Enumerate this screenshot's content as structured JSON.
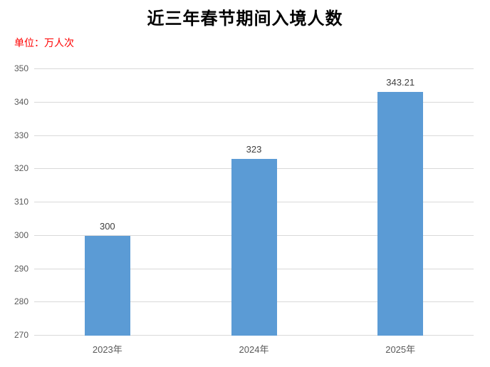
{
  "title": "近三年春节期间入境人数",
  "unit_label": "单位：万人次",
  "colors": {
    "bar": "#5b9bd5",
    "unit_label_text": "#ff0000",
    "title_text": "#000000",
    "axis_tick_text": "#595959",
    "data_label_text": "#404040",
    "gridline": "#d9d9d9",
    "background": "#ffffff"
  },
  "chart_data": {
    "type": "bar",
    "categories": [
      "2023年",
      "2024年",
      "2025年"
    ],
    "values": [
      300,
      323,
      343.21
    ],
    "data_labels": [
      "300",
      "323",
      "343.21"
    ],
    "title": "近三年春节期间入境人数",
    "xlabel": "",
    "ylabel": "单位：万人次",
    "ylim": [
      270,
      350
    ],
    "yticks": [
      270,
      280,
      290,
      300,
      310,
      320,
      330,
      340,
      350
    ],
    "grid": true,
    "legend_position": "none"
  }
}
